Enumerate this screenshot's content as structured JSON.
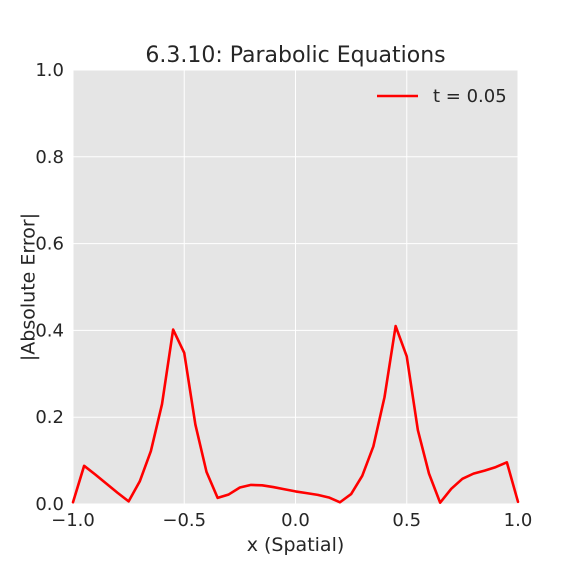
{
  "chart_data": {
    "type": "line",
    "title": "6.3.10: Parabolic Equations",
    "xlabel": "x (Spatial)",
    "ylabel": "|Absolute Error|",
    "xlim": [
      -1.0,
      1.0
    ],
    "ylim": [
      0.0,
      1.0
    ],
    "xticks": [
      -1.0,
      -0.5,
      0.0,
      0.5,
      1.0
    ],
    "xtick_labels": [
      "−1.0",
      "−0.5",
      "0.0",
      "0.5",
      "1.0"
    ],
    "yticks": [
      0.0,
      0.2,
      0.4,
      0.6,
      0.8,
      1.0
    ],
    "ytick_labels": [
      "0.0",
      "0.2",
      "0.4",
      "0.6",
      "0.8",
      "1.0"
    ],
    "grid": true,
    "legend_position": "top-right",
    "colors": {
      "background": "#e5e5e5",
      "grid": "#ffffff"
    },
    "series": [
      {
        "name": "t = 0.05",
        "color": "#ff0000",
        "x": [
          -1.0,
          -0.95,
          -0.9,
          -0.85,
          -0.8,
          -0.75,
          -0.7,
          -0.65,
          -0.6,
          -0.55,
          -0.5,
          -0.45,
          -0.4,
          -0.35,
          -0.3,
          -0.25,
          -0.2,
          -0.15,
          -0.1,
          -0.05,
          0.0,
          0.05,
          0.1,
          0.15,
          0.2,
          0.25,
          0.3,
          0.35,
          0.4,
          0.45,
          0.5,
          0.55,
          0.6,
          0.65,
          0.7,
          0.75,
          0.8,
          0.85,
          0.9,
          0.95,
          1.0
        ],
        "y": [
          0.004,
          0.088,
          0.068,
          0.047,
          0.026,
          0.006,
          0.052,
          0.122,
          0.23,
          0.402,
          0.348,
          0.183,
          0.074,
          0.014,
          0.022,
          0.038,
          0.044,
          0.043,
          0.039,
          0.034,
          0.029,
          0.025,
          0.021,
          0.015,
          0.004,
          0.023,
          0.065,
          0.133,
          0.246,
          0.41,
          0.34,
          0.17,
          0.07,
          0.003,
          0.035,
          0.058,
          0.07,
          0.077,
          0.085,
          0.096,
          0.005
        ]
      }
    ]
  }
}
